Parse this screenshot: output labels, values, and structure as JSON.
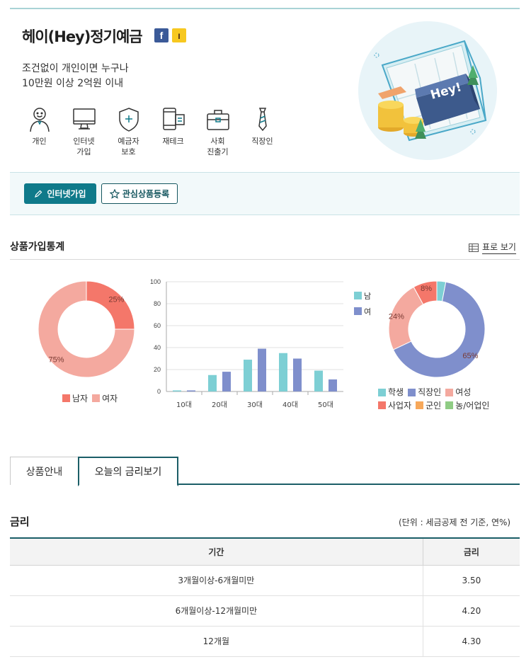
{
  "product": {
    "title": "헤이(Hey)정기예금",
    "share_facebook": "f",
    "share_kakao": "ı",
    "desc_line1": "조건없이 개인이면 누구나",
    "desc_line2": "10만원 이상 2억원 이내"
  },
  "targets": [
    {
      "label": "개인",
      "icon": "person-icon"
    },
    {
      "label": "인터넷\n가입",
      "icon": "monitor-icon"
    },
    {
      "label": "예금자\n보호",
      "icon": "shield-icon"
    },
    {
      "label": "재테크",
      "icon": "phone-chart-icon"
    },
    {
      "label": "사회\n진출기",
      "icon": "briefcase-icon"
    },
    {
      "label": "직장인",
      "icon": "necktie-icon"
    }
  ],
  "illustration": {
    "sign_text": "Hey!"
  },
  "actions": {
    "join_label": "인터넷가입",
    "favorite_label": "관심상품등록"
  },
  "stats": {
    "title": "상품가입통계",
    "table_view_label": "표로 보기"
  },
  "colors": {
    "accent": "#0f7a8a",
    "male": "#f4776a",
    "female": "#f4a99f",
    "bar_male": "#7dcfd4",
    "bar_female": "#7f8fcc"
  },
  "chart_data": [
    {
      "type": "pie",
      "labels": [
        "남자",
        "여자"
      ],
      "values": [
        25,
        75
      ],
      "slice_labels": [
        "25%",
        "75%"
      ],
      "colors": [
        "#f4776a",
        "#f4a99f"
      ],
      "legend": "bottom"
    },
    {
      "type": "bar",
      "categories": [
        "10대",
        "20대",
        "30대",
        "40대",
        "50대"
      ],
      "series": [
        {
          "name": "남",
          "values": [
            1,
            15,
            29,
            35,
            19
          ],
          "color": "#7dcfd4"
        },
        {
          "name": "여",
          "values": [
            1,
            18,
            39,
            30,
            11
          ],
          "color": "#7f8fcc"
        }
      ],
      "ylim": [
        0,
        100
      ],
      "yticks": [
        0,
        20,
        40,
        60,
        80,
        100
      ],
      "grid": true,
      "legend": "top-right"
    },
    {
      "type": "pie",
      "labels": [
        "학생",
        "직장인",
        "여성",
        "사업자",
        "군인",
        "농/어업인"
      ],
      "values": [
        3,
        65,
        24,
        8,
        0,
        0
      ],
      "slice_labels": [
        "",
        "65%",
        "24%",
        "8%",
        "",
        ""
      ],
      "colors": [
        "#7dcfd4",
        "#7f8fcc",
        "#f4a99f",
        "#f4776a",
        "#f7a85a",
        "#8fcc84"
      ],
      "legend": "bottom"
    }
  ],
  "tabs": [
    {
      "label": "상품안내"
    },
    {
      "label": "오늘의 금리보기"
    }
  ],
  "rates": {
    "title": "금리",
    "unit": "(단위 : 세금공제 전 기준, 연%)",
    "headers": [
      "기간",
      "금리"
    ],
    "rows": [
      [
        "3개월이상-6개월미만",
        "3.50"
      ],
      [
        "6개월이상-12개월미만",
        "4.20"
      ],
      [
        "12개월",
        "4.30"
      ]
    ]
  }
}
